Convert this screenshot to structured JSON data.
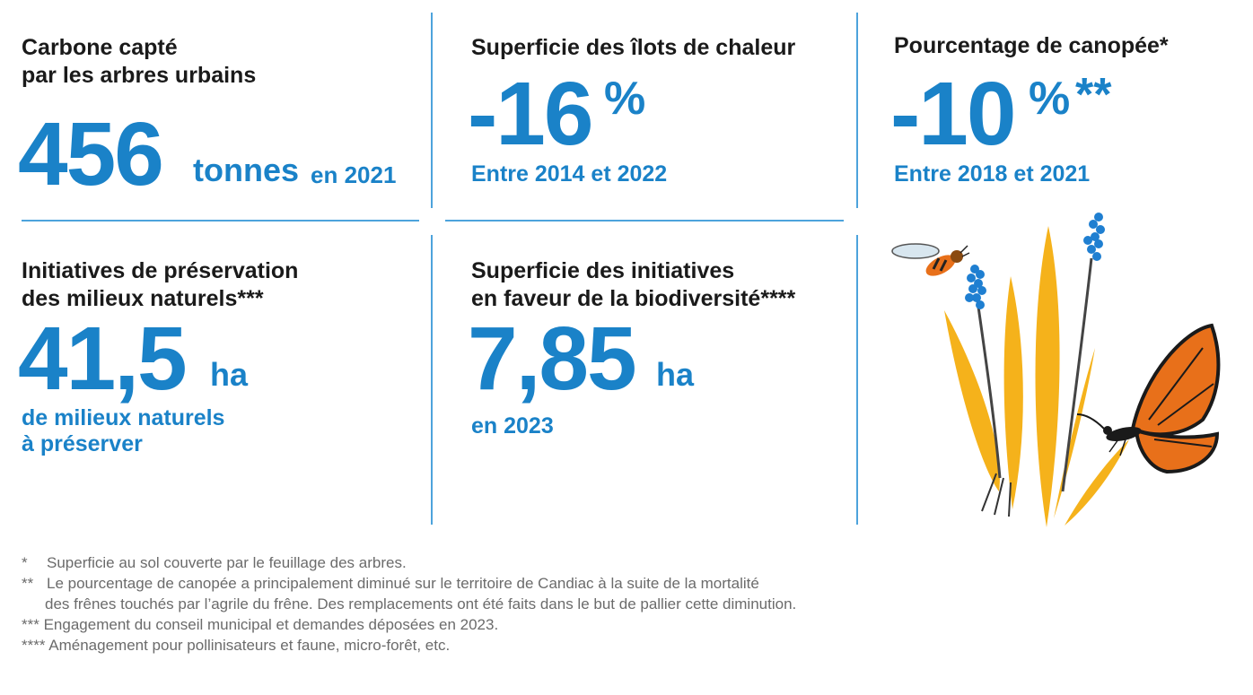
{
  "stats": {
    "carbon": {
      "title_line1": "Carbone capté",
      "title_line2": "par les arbres urbains",
      "value": "456",
      "unit": "tonnes",
      "suffix": "en 2021"
    },
    "heat_islands": {
      "title": "Superficie des îlots de chaleur",
      "value": "-16",
      "unit": "%",
      "subtitle": "Entre 2014 et 2022"
    },
    "canopy": {
      "title": "Pourcentage de canopée*",
      "value": "-10",
      "unit": "%",
      "stars": "**",
      "subtitle": "Entre 2018 et 2021"
    },
    "natural_areas": {
      "title_line1": "Initiatives de préservation",
      "title_line2": "des milieux naturels***",
      "value": "41,5",
      "unit": "ha",
      "subtitle_line1": "de milieux naturels",
      "subtitle_line2": "à préserver"
    },
    "biodiversity": {
      "title_line1": "Superficie des initiatives",
      "title_line2": "en faveur de la biodiversité****",
      "value": "7,85",
      "unit": "ha",
      "subtitle": "en 2023"
    }
  },
  "footnotes": [
    {
      "mark": "*",
      "text": "Superficie au sol couverte par le feuillage des arbres."
    },
    {
      "mark": "**",
      "text": "Le pourcentage de canopée a principalement diminué sur le territoire de Candiac à la suite de la mortalité",
      "continuation": "des frênes touchés par l’agrile du frêne. Des remplacements ont été faits dans le but de pallier cette diminution."
    },
    {
      "mark": "***",
      "text": "Engagement du conseil municipal et demandes déposées en 2023."
    },
    {
      "mark": "****",
      "text": "Aménagement pour pollinisateurs et faune, micro-forêt, etc."
    }
  ],
  "colors": {
    "accent_blue": "#1a82c8",
    "divider_blue": "#4da3dc",
    "plant_yellow": "#f5b21b",
    "flower_blue": "#1f7fd1",
    "butterfly_orange": "#e8701a",
    "footnote_gray": "#6b6b6b"
  },
  "illustration": {
    "icons": [
      "bee-icon",
      "butterfly-icon",
      "grass-icon",
      "grape-hyacinth-icon"
    ]
  }
}
